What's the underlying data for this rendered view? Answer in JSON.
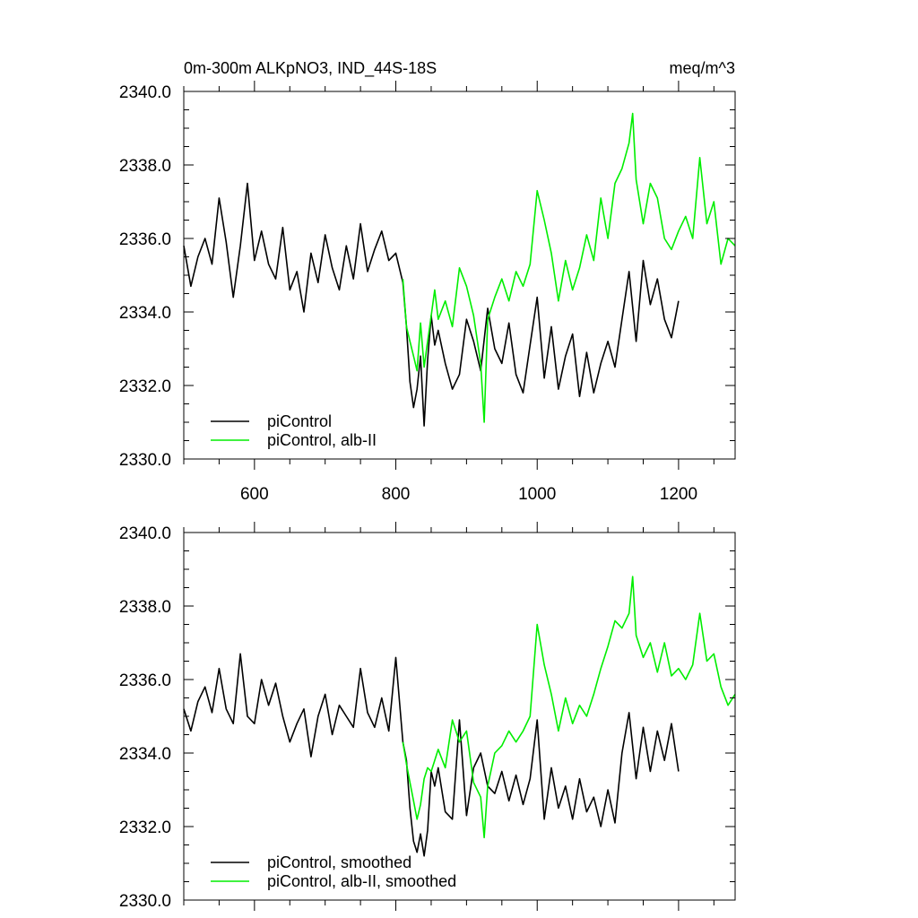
{
  "header": {
    "title": "0m-300m ALKpNO3, IND_44S-18S",
    "units": "meq/m^3"
  },
  "colors": {
    "control": "#000000",
    "alb": "#00ee00",
    "axis": "#000000"
  },
  "chart_data": [
    {
      "type": "line",
      "title": "0m-300m ALKpNO3, IND_44S-18S",
      "units_label": "meq/m^3",
      "xlim": [
        500,
        1280
      ],
      "ylim": [
        2330,
        2340
      ],
      "x_ticks": [
        600,
        800,
        1000,
        1200
      ],
      "x_tick_labels": [
        "600",
        "800",
        "1000",
        "1200"
      ],
      "y_ticks": [
        2330,
        2332,
        2334,
        2336,
        2338,
        2340
      ],
      "y_tick_labels": [
        "2330.0",
        "2332.0",
        "2334.0",
        "2336.0",
        "2338.0",
        "2340.0"
      ],
      "grid": false,
      "legend_position": "bottom-left",
      "series": [
        {
          "name": "piControl",
          "color": "#000000",
          "x": [
            500,
            510,
            520,
            530,
            540,
            550,
            560,
            570,
            580,
            590,
            600,
            610,
            620,
            630,
            640,
            650,
            660,
            670,
            680,
            690,
            700,
            710,
            720,
            730,
            740,
            750,
            760,
            770,
            780,
            790,
            800,
            810,
            815,
            820,
            825,
            830,
            835,
            840,
            845,
            850,
            855,
            860,
            870,
            880,
            890,
            900,
            910,
            920,
            930,
            940,
            950,
            960,
            970,
            980,
            990,
            1000,
            1010,
            1020,
            1030,
            1040,
            1050,
            1060,
            1070,
            1080,
            1090,
            1100,
            1110,
            1120,
            1130,
            1140,
            1150,
            1160,
            1170,
            1180,
            1190,
            1200
          ],
          "y": [
            2335.8,
            2334.7,
            2335.5,
            2336.0,
            2335.3,
            2337.1,
            2335.9,
            2334.4,
            2335.8,
            2337.5,
            2335.4,
            2336.2,
            2335.3,
            2334.9,
            2336.3,
            2334.6,
            2335.1,
            2334.0,
            2335.6,
            2334.8,
            2336.1,
            2335.2,
            2334.6,
            2335.8,
            2334.9,
            2336.4,
            2335.1,
            2335.7,
            2336.2,
            2335.4,
            2335.6,
            2334.8,
            2333.6,
            2332.1,
            2331.4,
            2331.9,
            2332.8,
            2330.9,
            2332.7,
            2333.9,
            2333.1,
            2333.5,
            2332.6,
            2331.9,
            2332.3,
            2333.8,
            2333.2,
            2332.4,
            2334.1,
            2333.0,
            2332.6,
            2333.7,
            2332.3,
            2331.8,
            2333.1,
            2334.4,
            2332.2,
            2333.6,
            2331.9,
            2332.8,
            2333.4,
            2331.7,
            2332.9,
            2331.8,
            2332.6,
            2333.2,
            2332.5,
            2333.8,
            2335.1,
            2333.2,
            2335.4,
            2334.2,
            2334.9,
            2333.8,
            2333.3,
            2334.3
          ]
        },
        {
          "name": "piControl, alb-II",
          "color": "#00ee00",
          "x": [
            810,
            815,
            820,
            825,
            830,
            835,
            840,
            845,
            850,
            855,
            860,
            870,
            880,
            890,
            900,
            910,
            920,
            925,
            930,
            940,
            950,
            960,
            970,
            980,
            990,
            1000,
            1010,
            1020,
            1030,
            1040,
            1050,
            1060,
            1070,
            1080,
            1090,
            1100,
            1110,
            1120,
            1130,
            1135,
            1140,
            1150,
            1160,
            1170,
            1180,
            1190,
            1200,
            1210,
            1220,
            1230,
            1240,
            1250,
            1260,
            1270,
            1280
          ],
          "y": [
            2334.9,
            2333.6,
            2333.2,
            2332.8,
            2332.4,
            2333.7,
            2332.5,
            2333.2,
            2333.9,
            2334.6,
            2333.8,
            2334.3,
            2333.6,
            2335.2,
            2334.7,
            2333.9,
            2332.6,
            2331.0,
            2333.8,
            2334.4,
            2334.9,
            2334.3,
            2335.1,
            2334.7,
            2335.3,
            2337.3,
            2336.5,
            2335.6,
            2334.3,
            2335.4,
            2334.6,
            2335.2,
            2336.1,
            2335.4,
            2337.1,
            2336.0,
            2337.5,
            2337.9,
            2338.6,
            2339.4,
            2337.6,
            2336.4,
            2337.5,
            2337.1,
            2336.0,
            2335.7,
            2336.2,
            2336.6,
            2336.0,
            2338.2,
            2336.4,
            2337.0,
            2335.3,
            2336.0,
            2335.8
          ]
        }
      ]
    },
    {
      "type": "line",
      "xlim": [
        500,
        1280
      ],
      "ylim": [
        2330,
        2340
      ],
      "x_ticks": [
        600,
        800,
        1000,
        1200
      ],
      "x_tick_labels": [],
      "y_ticks": [
        2330,
        2332,
        2334,
        2336,
        2338,
        2340
      ],
      "y_tick_labels": [
        "2330.0",
        "2332.0",
        "2334.0",
        "2336.0",
        "2338.0",
        "2340.0"
      ],
      "grid": false,
      "legend_position": "bottom-left",
      "series": [
        {
          "name": "piControl, smoothed",
          "color": "#000000",
          "x": [
            500,
            510,
            520,
            530,
            540,
            550,
            560,
            570,
            580,
            590,
            600,
            610,
            620,
            630,
            640,
            650,
            660,
            670,
            680,
            690,
            700,
            710,
            720,
            730,
            740,
            750,
            760,
            770,
            780,
            790,
            800,
            810,
            815,
            820,
            825,
            830,
            835,
            840,
            845,
            850,
            855,
            860,
            870,
            880,
            890,
            900,
            910,
            920,
            930,
            940,
            950,
            960,
            970,
            980,
            990,
            1000,
            1010,
            1020,
            1030,
            1040,
            1050,
            1060,
            1070,
            1080,
            1090,
            1100,
            1110,
            1120,
            1130,
            1140,
            1150,
            1160,
            1170,
            1180,
            1190,
            1200
          ],
          "y": [
            2335.2,
            2334.6,
            2335.4,
            2335.8,
            2335.1,
            2336.3,
            2335.2,
            2334.8,
            2336.7,
            2335.0,
            2334.8,
            2336.0,
            2335.3,
            2335.9,
            2335.0,
            2334.3,
            2334.8,
            2335.2,
            2333.9,
            2335.0,
            2335.6,
            2334.5,
            2335.3,
            2335.0,
            2334.7,
            2336.3,
            2335.1,
            2334.7,
            2335.5,
            2334.6,
            2336.6,
            2334.3,
            2333.8,
            2332.5,
            2331.6,
            2331.3,
            2331.8,
            2331.2,
            2331.9,
            2333.5,
            2333.1,
            2333.6,
            2332.4,
            2332.2,
            2334.9,
            2332.3,
            2333.6,
            2334.0,
            2333.1,
            2332.9,
            2333.5,
            2332.7,
            2333.4,
            2332.6,
            2333.3,
            2334.9,
            2332.2,
            2333.6,
            2332.5,
            2333.1,
            2332.2,
            2333.3,
            2332.4,
            2332.8,
            2332.0,
            2333.0,
            2332.1,
            2334.0,
            2335.1,
            2333.3,
            2334.7,
            2333.5,
            2334.6,
            2333.8,
            2334.8,
            2333.5
          ]
        },
        {
          "name": "piControl, alb-II, smoothed",
          "color": "#00ee00",
          "x": [
            810,
            815,
            820,
            825,
            830,
            835,
            840,
            845,
            850,
            855,
            860,
            870,
            880,
            890,
            900,
            910,
            920,
            925,
            930,
            940,
            950,
            960,
            970,
            980,
            990,
            1000,
            1010,
            1020,
            1030,
            1040,
            1050,
            1060,
            1070,
            1080,
            1090,
            1100,
            1110,
            1120,
            1130,
            1135,
            1140,
            1150,
            1160,
            1170,
            1180,
            1190,
            1200,
            1210,
            1220,
            1230,
            1240,
            1250,
            1260,
            1270,
            1280
          ],
          "y": [
            2334.3,
            2333.7,
            2333.2,
            2332.7,
            2332.2,
            2332.6,
            2333.3,
            2333.6,
            2333.5,
            2333.8,
            2334.1,
            2333.6,
            2334.9,
            2334.3,
            2334.6,
            2333.2,
            2332.8,
            2331.7,
            2333.1,
            2334.0,
            2334.2,
            2334.6,
            2334.3,
            2334.6,
            2335.0,
            2337.5,
            2336.4,
            2335.6,
            2334.6,
            2335.5,
            2334.8,
            2335.3,
            2335.0,
            2335.6,
            2336.3,
            2336.9,
            2337.6,
            2337.4,
            2337.8,
            2338.8,
            2337.2,
            2336.6,
            2337.0,
            2336.2,
            2337.0,
            2336.1,
            2336.3,
            2336.0,
            2336.4,
            2337.8,
            2336.5,
            2336.7,
            2335.8,
            2335.3,
            2335.6
          ]
        }
      ]
    }
  ]
}
